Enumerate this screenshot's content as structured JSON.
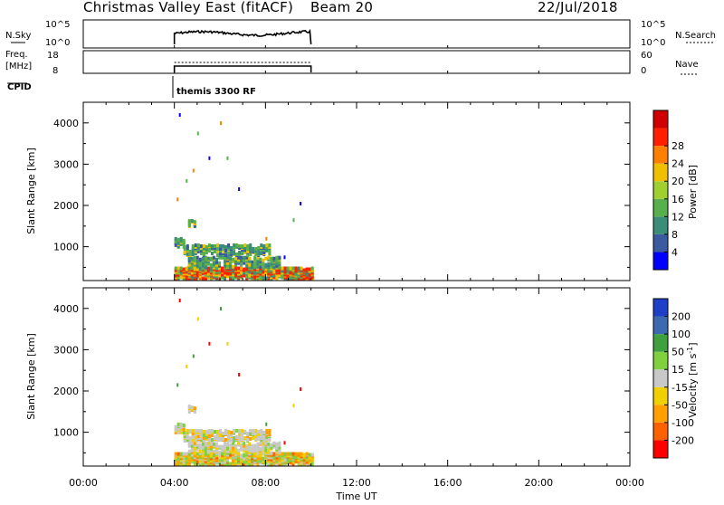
{
  "header": {
    "title": "Christmas Valley East (fitACF)",
    "beam": "Beam 20",
    "date": "22/Jul/2018"
  },
  "panel_nsky": {
    "left_label": "N.Sky",
    "left_ticks": [
      "10^5",
      "10^0"
    ],
    "right_ticks": [
      "10^5",
      "10^0"
    ],
    "right_label": "N.Search"
  },
  "panel_freq": {
    "left_label_1": "Freq.",
    "left_label_2": "[MHz]",
    "left_ticks": [
      "18",
      "8"
    ],
    "right_ticks": [
      "60",
      "0"
    ],
    "right_label": "Nave"
  },
  "cpid": {
    "label": "CPID",
    "program": "themis 3300 RF"
  },
  "time_axis": {
    "label": "Time UT",
    "ticks": [
      "00:00",
      "04:00",
      "08:00",
      "12:00",
      "16:00",
      "20:00",
      "00:00"
    ]
  },
  "chart_data": [
    {
      "type": "heatmap",
      "quantity": "power",
      "ylabel": "Slant Range [km]",
      "xlabel": "",
      "xlim_hours": [
        0,
        24
      ],
      "ylim_km": [
        180,
        4500
      ],
      "yticks": [
        1000,
        2000,
        3000,
        4000
      ],
      "data_window_hours": [
        4.0,
        10.0
      ],
      "colorbar": {
        "label": "Power [dB]",
        "ticks": [
          "4",
          "8",
          "12",
          "16",
          "20",
          "24",
          "28"
        ],
        "colors": [
          "#0000ff",
          "#3c5aa0",
          "#3c8c7a",
          "#57b04b",
          "#a0d030",
          "#f0c000",
          "#ff8000",
          "#ff2000",
          "#d00000"
        ]
      }
    },
    {
      "type": "heatmap",
      "quantity": "velocity",
      "ylabel": "Slant Range [km]",
      "xlabel": "Time UT",
      "xlim_hours": [
        0,
        24
      ],
      "ylim_km": [
        180,
        4500
      ],
      "yticks": [
        1000,
        2000,
        3000,
        4000
      ],
      "data_window_hours": [
        4.0,
        10.0
      ],
      "colorbar": {
        "label": "Velocity [m s",
        "label_sup": "-1",
        "label_end": "]",
        "ticks": [
          "-200",
          "-100",
          "-50",
          "-15",
          "15",
          "50",
          "100",
          "200"
        ],
        "colors": [
          "#ff0000",
          "#ff6000",
          "#ffa000",
          "#f0d000",
          "#c8c8c8",
          "#80d040",
          "#40a040",
          "#3c6ab0",
          "#1e40c8"
        ]
      }
    }
  ]
}
